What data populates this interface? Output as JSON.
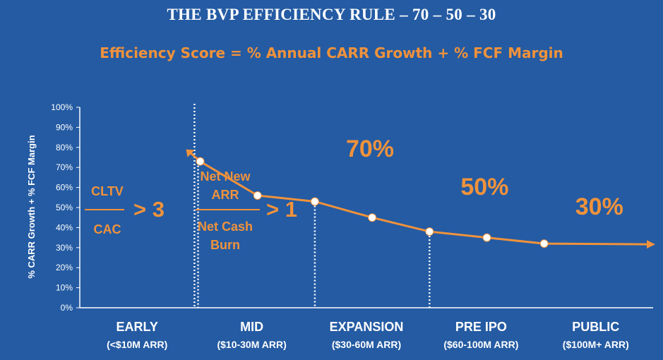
{
  "title": "THE BVP EFFICIENCY RULE – 70 – 50 – 30",
  "subtitle": "Efficiency Score = % Annual CARR Growth + % FCF Margin",
  "colors": {
    "background": "#245ba3",
    "accent": "#f0923b",
    "text": "#ffffff"
  },
  "chart_data": {
    "type": "line",
    "ylabel": "% CARR Growth + % FCF Margin",
    "ylim": [
      0,
      100
    ],
    "y_ticks": [
      "0%",
      "10%",
      "20%",
      "30%",
      "40%",
      "50%",
      "60%",
      "70%",
      "80%",
      "90%",
      "100%"
    ],
    "grid": false,
    "stages": [
      {
        "name": "EARLY",
        "range": "(<$10M ARR)"
      },
      {
        "name": "MID",
        "range": "($10-30M ARR)"
      },
      {
        "name": "EXPANSION",
        "range": "($30-60M ARR)"
      },
      {
        "name": "PRE IPO",
        "range": "($60-100M ARR)"
      },
      {
        "name": "PUBLIC",
        "range": "($100M+ ARR)"
      }
    ],
    "series": [
      {
        "values": [
          {
            "x": 2.05,
            "y": 73
          },
          {
            "x": 2.55,
            "y": 56
          },
          {
            "x": 3.05,
            "y": 53
          },
          {
            "x": 3.55,
            "y": 45
          },
          {
            "x": 4.05,
            "y": 38
          },
          {
            "x": 4.55,
            "y": 35
          },
          {
            "x": 5.05,
            "y": 32
          }
        ]
      }
    ],
    "annotations": [
      {
        "text": "70%",
        "stage": 3
      },
      {
        "text": "50%",
        "stage": 4
      },
      {
        "text": "30%",
        "stage": 5
      }
    ],
    "early_rule": {
      "numerator": "CLTV",
      "denominator": "CAC",
      "threshold": "> 3"
    },
    "mid_rule": {
      "numerator_1": "Net New",
      "numerator_2": "ARR",
      "denominator_1": "Net Cash",
      "denominator_2": "Burn",
      "threshold": "> 1"
    }
  }
}
